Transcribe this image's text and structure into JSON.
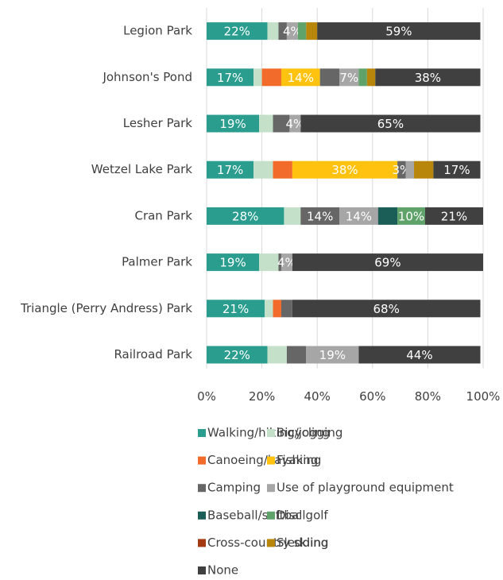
{
  "chart_data": {
    "type": "stacked_bar_horizontal",
    "categories": [
      "Legion Park",
      "Johnson's Pond",
      "Lesher Park",
      "Wetzel Lake Park",
      "Cran Park",
      "Palmer Park",
      "Triangle (Perry Andress) Park",
      "Railroad Park"
    ],
    "series": [
      {
        "name": "Walking/hiking/jogging",
        "color": "#2a9d8f",
        "values": [
          22,
          17,
          19,
          17,
          28,
          19,
          21,
          22
        ],
        "value_labels": [
          "22%",
          "17%",
          "19%",
          "17%",
          "28%",
          "19%",
          "21%",
          "22%"
        ]
      },
      {
        "name": "Bicycling",
        "color": "#c5e0c9",
        "values": [
          4,
          3,
          5,
          7,
          6,
          7,
          3,
          7
        ],
        "value_labels": [
          null,
          null,
          null,
          null,
          null,
          null,
          null,
          null
        ]
      },
      {
        "name": "Canoeing/kayaking",
        "color": "#f26b2a",
        "values": [
          0,
          7,
          0,
          7,
          0,
          0,
          3,
          0
        ],
        "value_labels": [
          null,
          null,
          null,
          null,
          null,
          null,
          null,
          null
        ]
      },
      {
        "name": "Fishing",
        "color": "#ffc20e",
        "values": [
          0,
          14,
          0,
          38,
          0,
          0,
          0,
          0
        ],
        "value_labels": [
          null,
          "14%",
          null,
          "38%",
          null,
          null,
          null,
          null
        ]
      },
      {
        "name": "Camping",
        "color": "#666666",
        "values": [
          3,
          7,
          6,
          3,
          14,
          1,
          4,
          7
        ],
        "value_labels": [
          null,
          null,
          null,
          "3%",
          "14%",
          null,
          null,
          null
        ]
      },
      {
        "name": "Use of playground equipment",
        "color": "#a6a6a6",
        "values": [
          4,
          7,
          4,
          3,
          14,
          4,
          0,
          19
        ],
        "value_labels": [
          "4%",
          "7%",
          "4%",
          null,
          "14%",
          "4%",
          null,
          "19%"
        ]
      },
      {
        "name": "Baseball/softball",
        "color": "#1b5e58",
        "values": [
          0,
          0,
          0,
          0,
          7,
          0,
          0,
          0
        ],
        "value_labels": [
          null,
          null,
          null,
          null,
          null,
          null,
          null,
          null
        ]
      },
      {
        "name": "Disc golf",
        "color": "#5fa36a",
        "values": [
          3,
          3,
          0,
          0,
          10,
          0,
          0,
          0
        ],
        "value_labels": [
          null,
          null,
          null,
          null,
          "10%",
          null,
          null,
          null
        ]
      },
      {
        "name": "Cross-country skiing",
        "color": "#a33a12",
        "values": [
          0,
          0,
          0,
          0,
          0,
          0,
          0,
          0
        ],
        "value_labels": [
          null,
          null,
          null,
          null,
          null,
          null,
          null,
          null
        ]
      },
      {
        "name": "Sledding",
        "color": "#b8860b",
        "values": [
          4,
          3,
          0,
          7,
          0,
          0,
          0,
          0
        ],
        "value_labels": [
          null,
          null,
          null,
          null,
          null,
          null,
          null,
          null
        ]
      },
      {
        "name": "None",
        "color": "#404040",
        "values": [
          59,
          38,
          65,
          17,
          21,
          69,
          68,
          44
        ],
        "value_labels": [
          "59%",
          "38%",
          "65%",
          "17%",
          "21%",
          "69%",
          "68%",
          "44%"
        ]
      }
    ],
    "xlim": [
      0,
      100
    ],
    "xticks": [
      {
        "value": 0,
        "label": "0%"
      },
      {
        "value": 20,
        "label": "20%"
      },
      {
        "value": 40,
        "label": "40%"
      },
      {
        "value": 60,
        "label": "60%"
      },
      {
        "value": 80,
        "label": "80%"
      },
      {
        "value": 100,
        "label": "100%"
      }
    ],
    "grid": true
  }
}
